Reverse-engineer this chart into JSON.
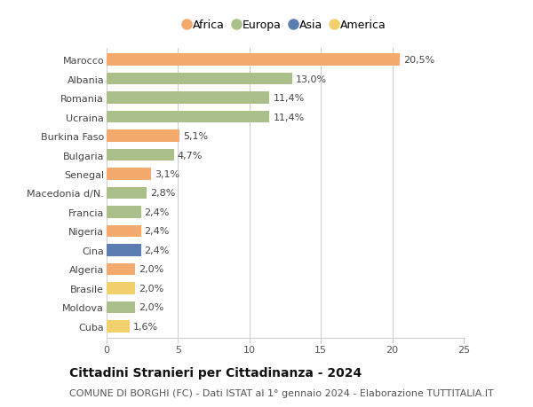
{
  "countries": [
    "Marocco",
    "Albania",
    "Romania",
    "Ucraina",
    "Burkina Faso",
    "Bulgaria",
    "Senegal",
    "Macedonia d/N.",
    "Francia",
    "Nigeria",
    "Cina",
    "Algeria",
    "Brasile",
    "Moldova",
    "Cuba"
  ],
  "values": [
    20.5,
    13.0,
    11.4,
    11.4,
    5.1,
    4.7,
    3.1,
    2.8,
    2.4,
    2.4,
    2.4,
    2.0,
    2.0,
    2.0,
    1.6
  ],
  "labels": [
    "20,5%",
    "13,0%",
    "11,4%",
    "11,4%",
    "5,1%",
    "4,7%",
    "3,1%",
    "2,8%",
    "2,4%",
    "2,4%",
    "2,4%",
    "2,0%",
    "2,0%",
    "2,0%",
    "1,6%"
  ],
  "continents": [
    "Africa",
    "Europa",
    "Europa",
    "Europa",
    "Africa",
    "Europa",
    "Africa",
    "Europa",
    "Europa",
    "Africa",
    "Asia",
    "Africa",
    "America",
    "Europa",
    "America"
  ],
  "colors": {
    "Africa": "#F4A96D",
    "Europa": "#AABF8A",
    "Asia": "#5B7DB1",
    "America": "#F2D06B"
  },
  "legend_order": [
    "Africa",
    "Europa",
    "Asia",
    "America"
  ],
  "title": "Cittadini Stranieri per Cittadinanza - 2024",
  "subtitle": "COMUNE DI BORGHI (FC) - Dati ISTAT al 1° gennaio 2024 - Elaborazione TUTTITALIA.IT",
  "xlim": [
    0,
    25
  ],
  "xticks": [
    0,
    5,
    10,
    15,
    20,
    25
  ],
  "background_color": "#ffffff",
  "bar_height": 0.62,
  "grid_color": "#cccccc",
  "title_fontsize": 10,
  "subtitle_fontsize": 8,
  "label_fontsize": 8,
  "tick_fontsize": 8,
  "legend_fontsize": 9
}
